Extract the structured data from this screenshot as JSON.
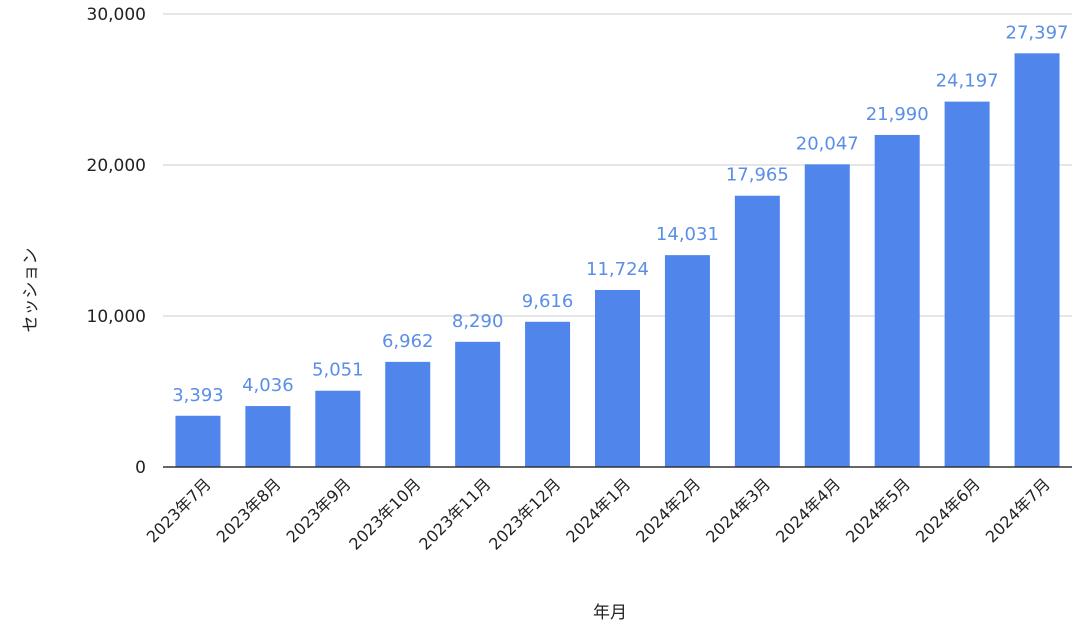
{
  "chart_data": {
    "type": "bar",
    "title": "",
    "xlabel": "年月",
    "ylabel": "セッション",
    "ylim": [
      0,
      30000
    ],
    "yticks": [
      0,
      10000,
      20000,
      30000
    ],
    "ytick_labels": [
      "0",
      "10,000",
      "20,000",
      "30,000"
    ],
    "grid": true,
    "legend": "none",
    "categories": [
      "2023年7月",
      "2023年8月",
      "2023年9月",
      "2023年10月",
      "2023年11月",
      "2023年12月",
      "2024年1月",
      "2024年2月",
      "2024年3月",
      "2024年4月",
      "2024年5月",
      "2024年6月",
      "2024年7月"
    ],
    "values": [
      3393,
      4036,
      5051,
      6962,
      8290,
      9616,
      11724,
      14031,
      17965,
      20047,
      21990,
      24197,
      27397
    ],
    "data_labels": [
      "3,393",
      "4,036",
      "5,051",
      "6,962",
      "8,290",
      "9,616",
      "11,724",
      "14,031",
      "17,965",
      "20,047",
      "21,990",
      "24,197",
      "27,397"
    ],
    "colors": {
      "bar": "#5085ec",
      "data_label": "#5b8ee6",
      "grid": "#cccccc",
      "baseline": "#333333"
    }
  }
}
